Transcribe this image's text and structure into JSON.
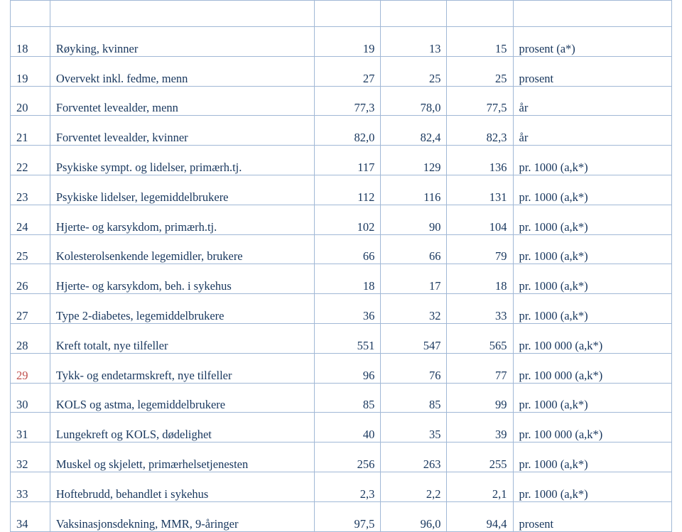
{
  "table": {
    "border_color": "#a1b8d6",
    "text_color": "#17365d",
    "highlight_color": "#c0504d",
    "font_family": "Palatino Linotype",
    "font_size_pt": 12,
    "columns": [
      "idx",
      "description",
      "value1",
      "value2",
      "value3",
      "unit"
    ],
    "rows": [
      {
        "idx": "18",
        "desc": "Røyking, kvinner",
        "v1": "19",
        "v2": "13",
        "v3": "15",
        "unit": "prosent (a*)",
        "red": false
      },
      {
        "idx": "19",
        "desc": "Overvekt inkl. fedme, menn",
        "v1": "27",
        "v2": "25",
        "v3": "25",
        "unit": "prosent",
        "red": false
      },
      {
        "idx": "20",
        "desc": "Forventet levealder, menn",
        "v1": "77,3",
        "v2": "78,0",
        "v3": "77,5",
        "unit": "år",
        "red": false
      },
      {
        "idx": "21",
        "desc": "Forventet levealder, kvinner",
        "v1": "82,0",
        "v2": "82,4",
        "v3": "82,3",
        "unit": "år",
        "red": false
      },
      {
        "idx": "22",
        "desc": "Psykiske sympt. og lidelser, primærh.tj.",
        "v1": "117",
        "v2": "129",
        "v3": "136",
        "unit": "pr. 1000 (a,k*)",
        "red": false
      },
      {
        "idx": "23",
        "desc": "Psykiske lidelser, legemiddelbrukere",
        "v1": "112",
        "v2": "116",
        "v3": "131",
        "unit": "pr. 1000 (a,k*)",
        "red": false
      },
      {
        "idx": "24",
        "desc": "Hjerte- og karsykdom, primærh.tj.",
        "v1": "102",
        "v2": "90",
        "v3": "104",
        "unit": "pr. 1000 (a,k*)",
        "red": false
      },
      {
        "idx": "25",
        "desc": "Kolesterolsenkende legemidler, brukere",
        "v1": "66",
        "v2": "66",
        "v3": "79",
        "unit": "pr. 1000 (a,k*)",
        "red": false
      },
      {
        "idx": "26",
        "desc": "Hjerte- og karsykdom, beh. i sykehus",
        "v1": "18",
        "v2": "17",
        "v3": "18",
        "unit": "pr. 1000 (a,k*)",
        "red": false
      },
      {
        "idx": "27",
        "desc": "Type 2-diabetes, legemiddelbrukere",
        "v1": "36",
        "v2": "32",
        "v3": "33",
        "unit": "pr. 1000 (a,k*)",
        "red": false
      },
      {
        "idx": "28",
        "desc": "Kreft totalt, nye tilfeller",
        "v1": "551",
        "v2": "547",
        "v3": "565",
        "unit": "pr. 100 000 (a,k*)",
        "red": false
      },
      {
        "idx": "29",
        "desc": "Tykk- og endetarmskreft, nye tilfeller",
        "v1": "96",
        "v2": "76",
        "v3": "77",
        "unit": "pr. 100 000 (a,k*)",
        "red": true
      },
      {
        "idx": "30",
        "desc": "KOLS og astma, legemiddelbrukere",
        "v1": "85",
        "v2": "85",
        "v3": "99",
        "unit": "pr. 1000 (a,k*)",
        "red": false
      },
      {
        "idx": "31",
        "desc": "Lungekreft og KOLS, dødelighet",
        "v1": "40",
        "v2": "35",
        "v3": "39",
        "unit": "pr. 100 000 (a,k*)",
        "red": false
      },
      {
        "idx": "32",
        "desc": "Muskel og skjelett, primærhelsetjenesten",
        "v1": "256",
        "v2": "263",
        "v3": "255",
        "unit": "pr. 1000 (a,k*)",
        "red": false
      },
      {
        "idx": "33",
        "desc": "Hoftebrudd, behandlet i sykehus",
        "v1": "2,3",
        "v2": "2,2",
        "v3": "2,1",
        "unit": "pr. 1000 (a,k*)",
        "red": false
      },
      {
        "idx": "34",
        "desc": "Vaksinasjonsdekning, MMR, 9-åringer",
        "v1": "97,5",
        "v2": "96,0",
        "v3": "94,4",
        "unit": "prosent",
        "red": false
      }
    ]
  }
}
